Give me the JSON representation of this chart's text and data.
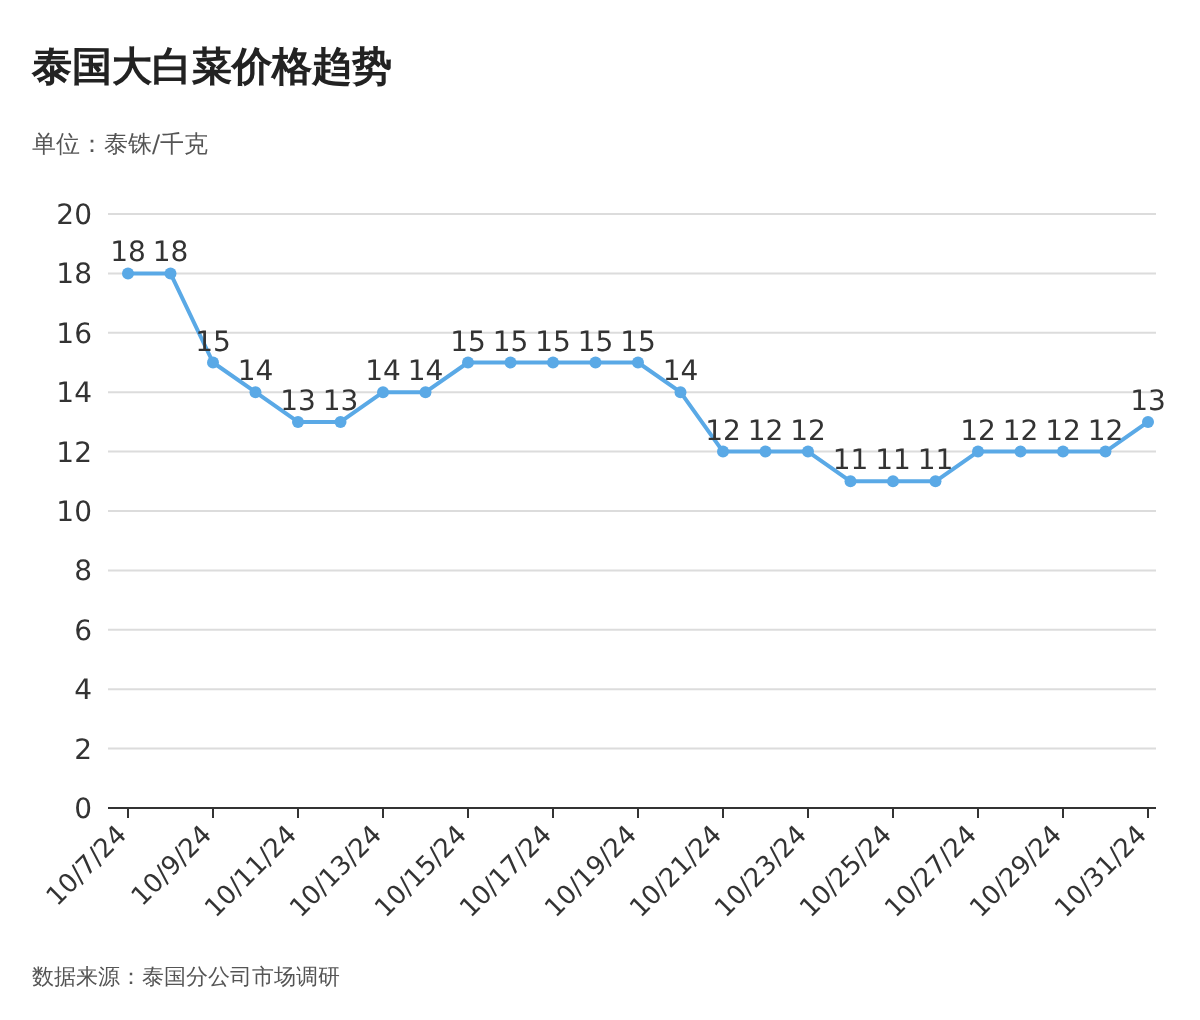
{
  "chart_data": {
    "type": "line",
    "title": "泰国大白菜价格趋势",
    "subtitle": "单位：泰铢/千克",
    "categories": [
      "10/7/24",
      null,
      "10/9/24",
      null,
      "10/11/24",
      null,
      "10/13/24",
      null,
      "10/15/24",
      null,
      "10/17/24",
      null,
      "10/19/24",
      null,
      "10/21/24",
      null,
      "10/23/24",
      null,
      "10/25/24",
      null,
      "10/27/24",
      null,
      "10/29/24",
      null,
      "10/31/24"
    ],
    "series": [
      {
        "color": "#5aa9e6",
        "values": [
          18,
          18,
          15,
          14,
          13,
          13,
          14,
          14,
          15,
          15,
          15,
          15,
          15,
          14,
          12,
          12,
          12,
          11,
          11,
          11,
          12,
          12,
          12,
          12,
          13
        ]
      }
    ],
    "ylim": [
      0,
      20
    ],
    "yticks": [
      0,
      2,
      4,
      6,
      8,
      10,
      12,
      14,
      16,
      18,
      20
    ],
    "grid": "y",
    "marker": "circle",
    "line_style": "solid",
    "data_labels": true,
    "annotations": [
      "数据来源：泰国分公司市场调研"
    ]
  }
}
